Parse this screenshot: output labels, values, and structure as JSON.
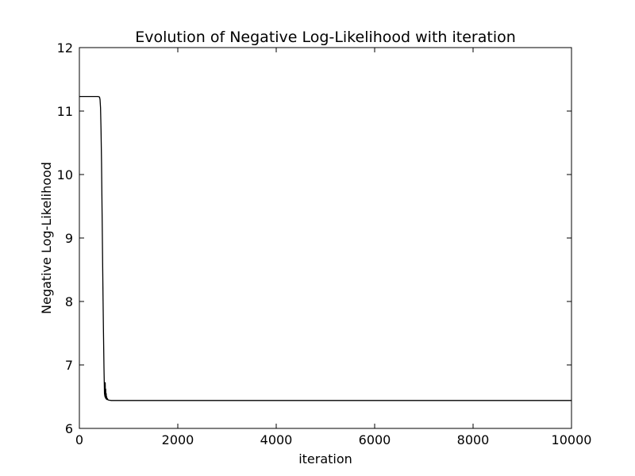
{
  "chart_data": {
    "type": "line",
    "title": "Evolution of Negative Log-Likelihood with iteration",
    "xlabel": "iteration",
    "ylabel": "Negative Log-Likelihood",
    "xlim": [
      0,
      10000
    ],
    "ylim": [
      6,
      12
    ],
    "xticks": [
      0,
      2000,
      4000,
      6000,
      8000,
      10000
    ],
    "yticks": [
      6,
      7,
      8,
      9,
      10,
      11,
      12
    ],
    "xtick_labels": [
      "0",
      "2000",
      "4000",
      "6000",
      "8000",
      "10000"
    ],
    "ytick_labels": [
      "6",
      "7",
      "8",
      "9",
      "10",
      "11",
      "12"
    ],
    "grid": false,
    "series": [
      {
        "color": "#000000",
        "x": [
          0,
          100,
          200,
          300,
          380,
          410,
          420,
          430,
          440,
          450,
          460,
          470,
          480,
          490,
          500,
          510,
          520,
          525,
          530,
          535,
          540,
          545,
          550,
          555,
          560,
          570,
          580,
          600,
          650,
          700,
          1000,
          2000,
          4000,
          6000,
          8000,
          10000
        ],
        "y": [
          11.23,
          11.23,
          11.23,
          11.23,
          11.23,
          11.22,
          11.18,
          11.05,
          10.7,
          10.2,
          9.5,
          8.8,
          8.1,
          7.5,
          6.95,
          6.55,
          6.5,
          6.72,
          6.48,
          6.62,
          6.47,
          6.55,
          6.46,
          6.5,
          6.455,
          6.47,
          6.45,
          6.445,
          6.44,
          6.44,
          6.44,
          6.44,
          6.44,
          6.44,
          6.44,
          6.44
        ]
      }
    ]
  }
}
